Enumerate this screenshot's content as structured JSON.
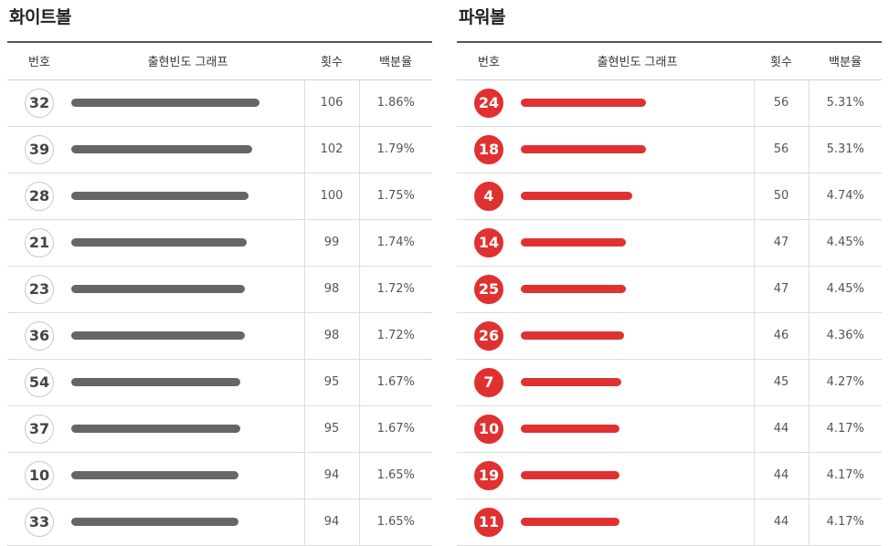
{
  "colors": {
    "white_bar": "#666666",
    "power_bar": "#e03131",
    "power_ball": "#e03131"
  },
  "columns": {
    "number": "번호",
    "graph": "출현빈도 그래프",
    "count": "횟수",
    "percent": "백분율"
  },
  "white": {
    "title": "화이트볼",
    "max_count": 106,
    "rows": [
      {
        "ball": "32",
        "count": 106,
        "count_text": "106",
        "pct": "1.86%"
      },
      {
        "ball": "39",
        "count": 102,
        "count_text": "102",
        "pct": "1.79%"
      },
      {
        "ball": "28",
        "count": 100,
        "count_text": "100",
        "pct": "1.75%"
      },
      {
        "ball": "21",
        "count": 99,
        "count_text": "99",
        "pct": "1.74%"
      },
      {
        "ball": "23",
        "count": 98,
        "count_text": "98",
        "pct": "1.72%"
      },
      {
        "ball": "36",
        "count": 98,
        "count_text": "98",
        "pct": "1.72%"
      },
      {
        "ball": "54",
        "count": 95,
        "count_text": "95",
        "pct": "1.67%"
      },
      {
        "ball": "37",
        "count": 95,
        "count_text": "95",
        "pct": "1.67%"
      },
      {
        "ball": "10",
        "count": 94,
        "count_text": "94",
        "pct": "1.65%"
      },
      {
        "ball": "33",
        "count": 94,
        "count_text": "94",
        "pct": "1.65%"
      }
    ]
  },
  "power": {
    "title": "파워볼",
    "max_count": 56,
    "rows": [
      {
        "ball": "24",
        "count": 56,
        "count_text": "56",
        "pct": "5.31%"
      },
      {
        "ball": "18",
        "count": 56,
        "count_text": "56",
        "pct": "5.31%"
      },
      {
        "ball": "4",
        "count": 50,
        "count_text": "50",
        "pct": "4.74%"
      },
      {
        "ball": "14",
        "count": 47,
        "count_text": "47",
        "pct": "4.45%"
      },
      {
        "ball": "25",
        "count": 47,
        "count_text": "47",
        "pct": "4.45%"
      },
      {
        "ball": "26",
        "count": 46,
        "count_text": "46",
        "pct": "4.36%"
      },
      {
        "ball": "7",
        "count": 45,
        "count_text": "45",
        "pct": "4.27%"
      },
      {
        "ball": "10",
        "count": 44,
        "count_text": "44",
        "pct": "4.17%"
      },
      {
        "ball": "19",
        "count": 44,
        "count_text": "44",
        "pct": "4.17%"
      },
      {
        "ball": "11",
        "count": 44,
        "count_text": "44",
        "pct": "4.17%"
      }
    ]
  }
}
